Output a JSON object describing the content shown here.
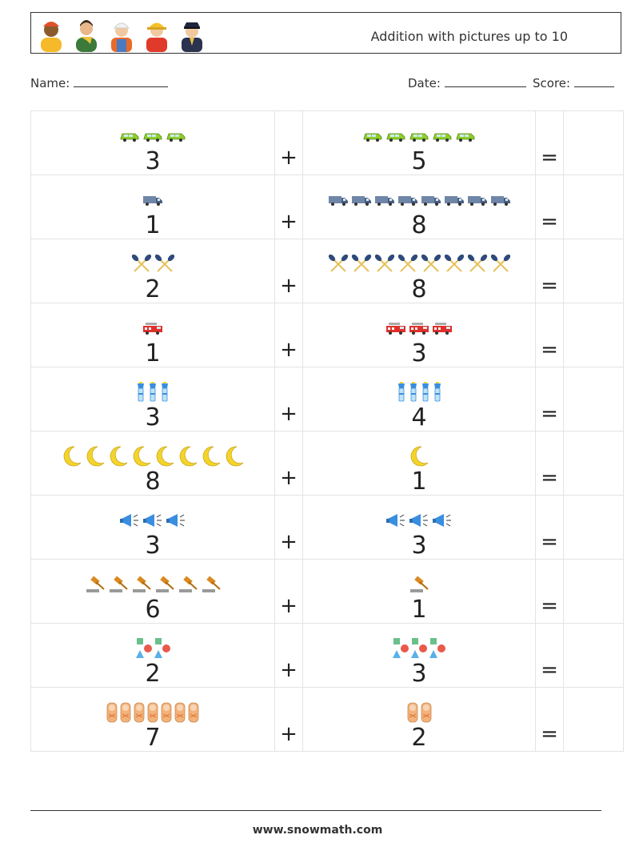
{
  "header": {
    "title": "Addition with pictures up to 10",
    "avatars": [
      "person-orange-icon",
      "person-scarf-icon",
      "worker-helmet-icon",
      "firefighter-icon",
      "police-officer-icon"
    ]
  },
  "meta": {
    "name_label": "Name:",
    "date_label": "Date:",
    "score_label": "Score:"
  },
  "operators": {
    "plus": "+",
    "equals": "="
  },
  "problems": [
    {
      "a": 3,
      "b": 5,
      "icon": "green-car-icon"
    },
    {
      "a": 1,
      "b": 8,
      "icon": "delivery-van-icon"
    },
    {
      "a": 2,
      "b": 8,
      "icon": "paddles-icon"
    },
    {
      "a": 1,
      "b": 3,
      "icon": "fire-truck-icon"
    },
    {
      "a": 3,
      "b": 4,
      "icon": "flashlight-icon"
    },
    {
      "a": 8,
      "b": 1,
      "icon": "crescent-moon-icon"
    },
    {
      "a": 3,
      "b": 3,
      "icon": "megaphone-icon"
    },
    {
      "a": 6,
      "b": 1,
      "icon": "gavel-icon"
    },
    {
      "a": 2,
      "b": 3,
      "icon": "shapes-icon"
    },
    {
      "a": 7,
      "b": 2,
      "icon": "baby-icon"
    }
  ],
  "footer": {
    "website": "www.snowmath.com"
  }
}
